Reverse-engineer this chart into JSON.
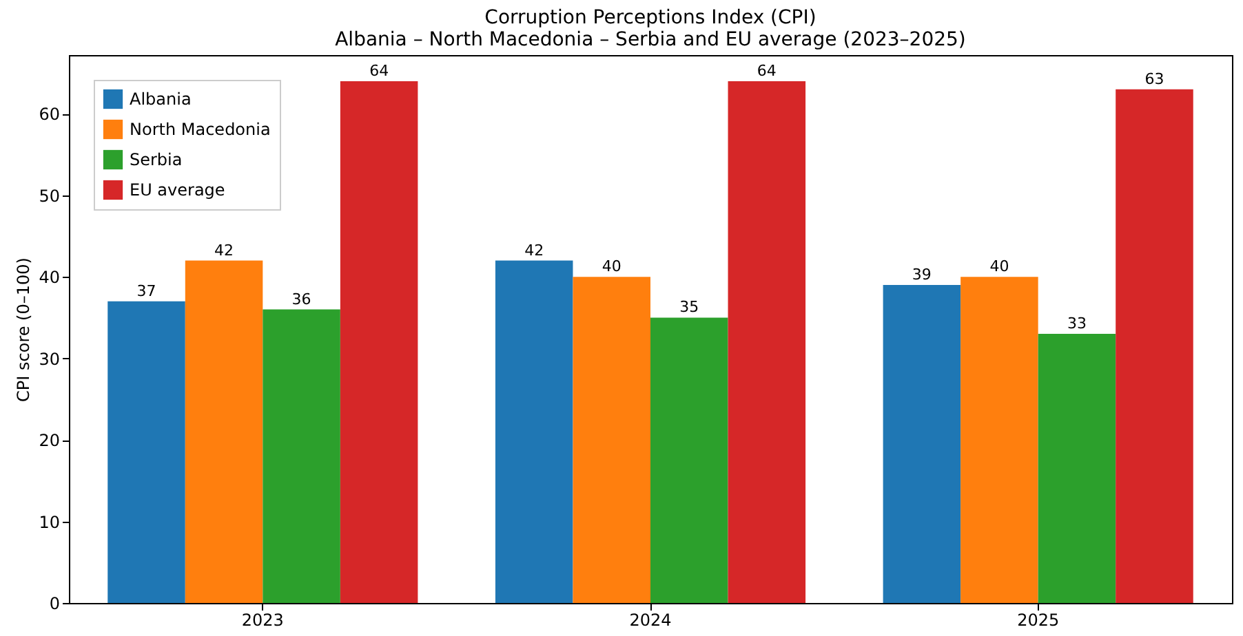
{
  "chart_data": {
    "type": "bar",
    "title": "Corruption Perceptions Index (CPI)",
    "subtitle": "Albania – North Macedonia – Serbia and EU average (2023–2025)",
    "ylabel": "CPI score (0–100)",
    "categories": [
      "2023",
      "2024",
      "2025"
    ],
    "series": [
      {
        "name": "Albania",
        "color": "#1f77b4",
        "values": [
          37,
          42,
          39
        ]
      },
      {
        "name": "North Macedonia",
        "color": "#ff7f0e",
        "values": [
          42,
          40,
          40
        ]
      },
      {
        "name": "Serbia",
        "color": "#2ca02c",
        "values": [
          36,
          35,
          33
        ]
      },
      {
        "name": "EU average",
        "color": "#d62728",
        "values": [
          64,
          64,
          63
        ]
      }
    ],
    "ylim": [
      0,
      67.2
    ],
    "yticks": [
      0,
      10,
      20,
      30,
      40,
      50,
      60
    ],
    "data_labels": true,
    "legend": "top left",
    "grid": false
  }
}
